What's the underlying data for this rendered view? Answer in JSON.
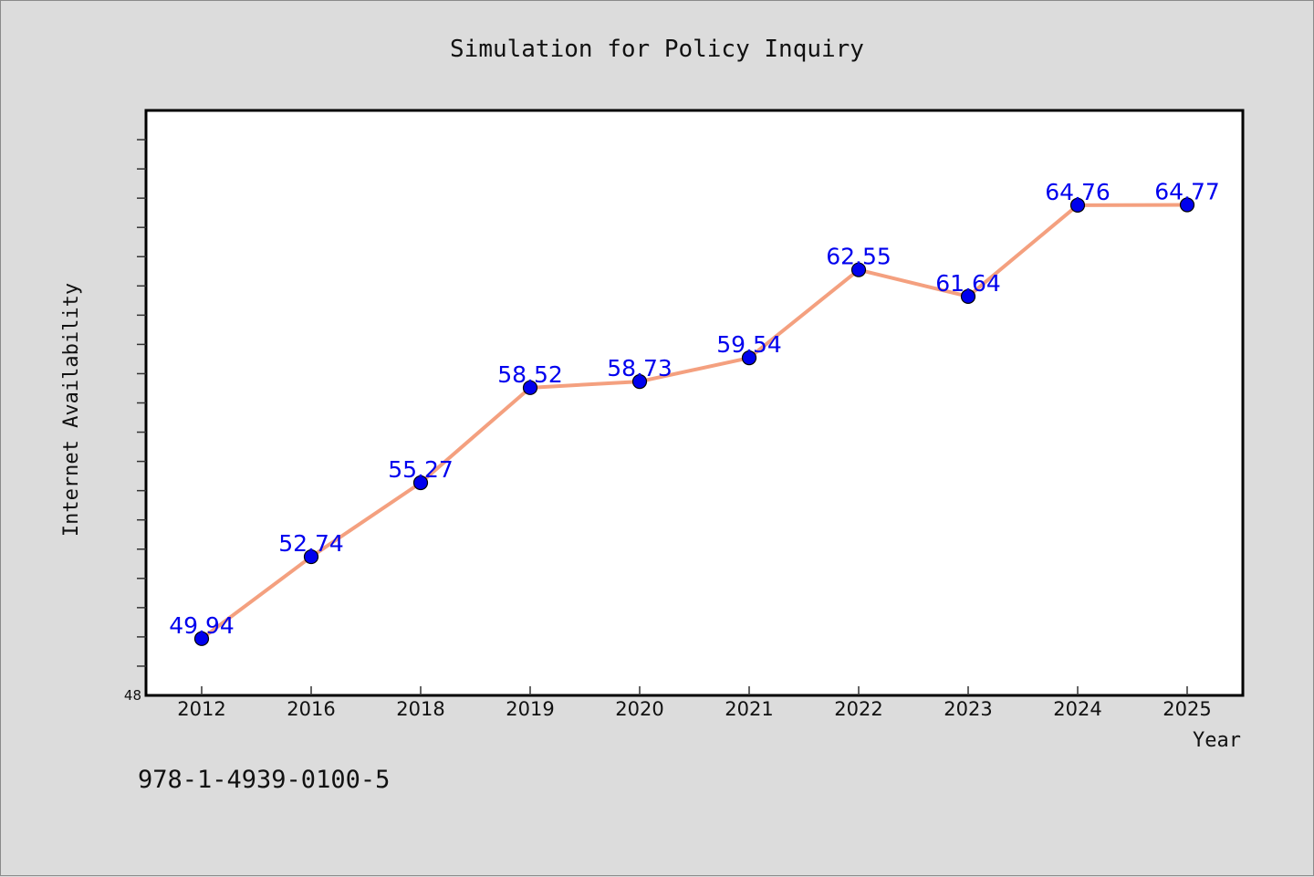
{
  "chart_data": {
    "type": "line",
    "title": "Simulation for Policy Inquiry",
    "xlabel": "Year",
    "ylabel": "Internet Availability",
    "categories": [
      "2012",
      "2016",
      "2018",
      "2019",
      "2020",
      "2021",
      "2022",
      "2023",
      "2024",
      "2025"
    ],
    "series": [
      {
        "values": [
          49.94,
          52.74,
          55.27,
          58.52,
          58.73,
          59.54,
          62.55,
          61.64,
          64.76,
          64.77
        ]
      }
    ],
    "data_labels": [
      "49.94",
      "52.74",
      "55.27",
      "58.52",
      "58.73",
      "59.54",
      "62.55",
      "61.64",
      "64.76",
      "64.77"
    ],
    "ylim": [
      48,
      68
    ],
    "yticks": [
      48
    ],
    "grid": false,
    "legend": "none",
    "colors": {
      "line": "#f4a07f",
      "marker": "#0000ee",
      "label": "#0000ee",
      "plot_background": "#ffffff",
      "page_background": "#dcdcdc"
    }
  },
  "footer": {
    "code": "978-1-4939-0100-5"
  }
}
